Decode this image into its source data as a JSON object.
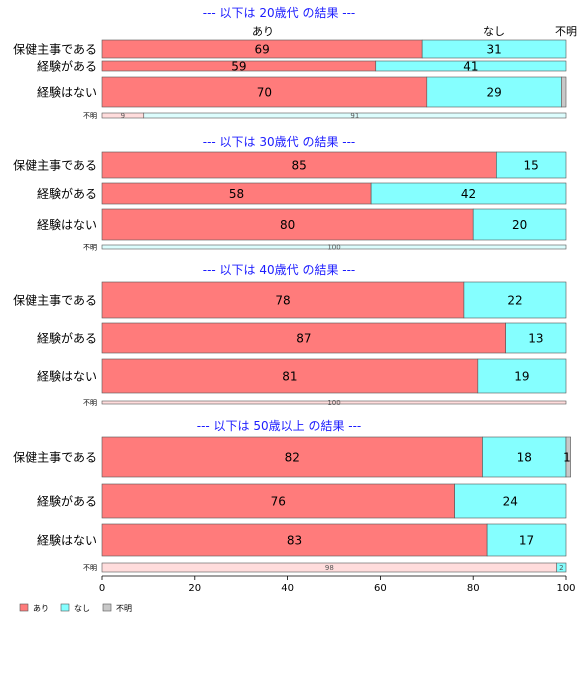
{
  "chart_data": {
    "type": "bar",
    "orientation": "horizontal",
    "stacked": true,
    "xlim": [
      0,
      100
    ],
    "x_ticks": [
      "0",
      "20",
      "40",
      "60",
      "80",
      "100"
    ],
    "series_names": [
      "あり",
      "なし",
      "不明"
    ],
    "colors": {
      "yes": "#ff7b7b",
      "no": "#85ffff",
      "unknown": "#c8c8c8",
      "title": "#1c1cff",
      "stroke": "#555555"
    },
    "column_headers": [
      "あり",
      "なし",
      "不明"
    ],
    "legend": {
      "placement": "bottom-left",
      "items": [
        "あり",
        "なし",
        "不明"
      ]
    },
    "panels": [
      {
        "title": "--- 以下は 20歳代 の結果 ---",
        "rows": [
          {
            "label": "保健主事である",
            "values": [
              69,
              31,
              0
            ],
            "value_labels": [
              "69",
              "31",
              ""
            ]
          },
          {
            "label": "経験がある",
            "values": [
              59,
              41,
              0
            ],
            "value_labels": [
              "59",
              "41",
              ""
            ]
          },
          {
            "label": "経験はない",
            "values": [
              70,
              29,
              1
            ],
            "value_labels": [
              "70",
              "29",
              ""
            ]
          },
          {
            "label": "不明",
            "values": [
              9,
              91,
              0
            ],
            "value_labels": [
              "9",
              "91",
              ""
            ]
          }
        ]
      },
      {
        "title": "--- 以下は 30歳代 の結果 ---",
        "rows": [
          {
            "label": "保健主事である",
            "values": [
              85,
              15,
              0
            ],
            "value_labels": [
              "85",
              "15",
              ""
            ]
          },
          {
            "label": "経験がある",
            "values": [
              58,
              42,
              0
            ],
            "value_labels": [
              "58",
              "42",
              ""
            ]
          },
          {
            "label": "経験はない",
            "values": [
              80,
              20,
              0
            ],
            "value_labels": [
              "80",
              "20",
              ""
            ]
          },
          {
            "label": "不明",
            "values": [
              0,
              100,
              0
            ],
            "value_labels": [
              "",
              "100",
              ""
            ]
          }
        ]
      },
      {
        "title": "--- 以下は 40歳代 の結果 ---",
        "rows": [
          {
            "label": "保健主事である",
            "values": [
              78,
              22,
              0
            ],
            "value_labels": [
              "78",
              "22",
              ""
            ]
          },
          {
            "label": "経験がある",
            "values": [
              87,
              13,
              0
            ],
            "value_labels": [
              "87",
              "13",
              ""
            ]
          },
          {
            "label": "経験はない",
            "values": [
              81,
              19,
              0
            ],
            "value_labels": [
              "81",
              "19",
              ""
            ]
          },
          {
            "label": "不明",
            "values": [
              100,
              0,
              0
            ],
            "value_labels": [
              "100",
              "",
              ""
            ]
          }
        ]
      },
      {
        "title": "--- 以下は 50歳以上 の結果 ---",
        "rows": [
          {
            "label": "保健主事である",
            "values": [
              82,
              18,
              1
            ],
            "value_labels": [
              "82",
              "18",
              "1"
            ]
          },
          {
            "label": "経験がある",
            "values": [
              76,
              24,
              0
            ],
            "value_labels": [
              "76",
              "24",
              ""
            ]
          },
          {
            "label": "経験はない",
            "values": [
              83,
              17,
              0
            ],
            "value_labels": [
              "83",
              "17",
              ""
            ]
          },
          {
            "label": "不明",
            "values": [
              98,
              2,
              0
            ],
            "value_labels": [
              "98",
              "2",
              ""
            ]
          }
        ]
      }
    ]
  }
}
